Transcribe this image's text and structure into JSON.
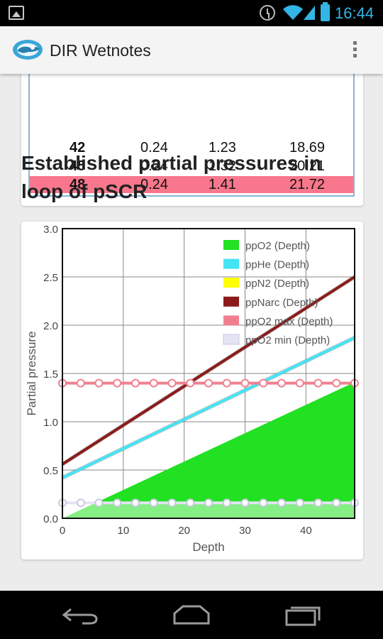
{
  "status_bar": {
    "time": "16:44",
    "icons": [
      "image-notification-icon",
      "alarm-icon",
      "wifi-icon",
      "signal-icon",
      "battery-icon"
    ],
    "accent_color": "#33b5e5"
  },
  "action_bar": {
    "title": "DIR Wetnotes",
    "logo_icon": "diver-logo-icon",
    "menu_icon": "overflow-menu-icon"
  },
  "table": {
    "rows": [
      {
        "depth": "42",
        "v1": "0.24",
        "v2": "1.23",
        "v3": "18.69",
        "highlight": false
      },
      {
        "depth": "45",
        "v1": "0.24",
        "v2": "1.32",
        "v3": "20.21",
        "highlight": false
      },
      {
        "depth": "48",
        "v1": "0.24",
        "v2": "1.41",
        "v3": "21.72",
        "highlight": true
      }
    ],
    "highlight_color": "#f9778c"
  },
  "section": {
    "title": "Established partial pressures in loop of pSCR"
  },
  "chart_data": {
    "type": "line",
    "title": "",
    "xlabel": "Depth",
    "ylabel": "Partial pressure",
    "xlim": [
      0,
      48
    ],
    "ylim": [
      0,
      3.0
    ],
    "x_ticks": [
      0,
      10,
      20,
      30,
      40
    ],
    "y_ticks": [
      0.0,
      0.5,
      1.0,
      1.5,
      2.0,
      2.5,
      3.0
    ],
    "x_tick_labels": [
      "0",
      "10",
      "20",
      "30",
      "40"
    ],
    "y_tick_labels": [
      "0.0",
      "0.5",
      "1.0",
      "1.5",
      "2.0",
      "2.5",
      "3.0"
    ],
    "grid": true,
    "legend_position": "top-right",
    "series": [
      {
        "name": "ppO2 (Depth)",
        "color": "#22e022",
        "style": "area",
        "x": [
          0,
          48
        ],
        "y": [
          0.0,
          1.41
        ]
      },
      {
        "name": "ppHe (Depth)",
        "color": "#44e4f4",
        "style": "line",
        "x": [
          0,
          48
        ],
        "y": [
          0.42,
          1.87
        ]
      },
      {
        "name": "ppN2 (Depth)",
        "color": "#ffff00",
        "style": "line",
        "x": [],
        "y": []
      },
      {
        "name": "ppNarc (Depth)",
        "color": "#8b1a1a",
        "style": "line",
        "x": [
          0,
          48
        ],
        "y": [
          0.56,
          2.5
        ]
      },
      {
        "name": "ppO2 max (Depth)",
        "color": "#f08090",
        "style": "line-markers",
        "x": [
          0,
          3,
          6,
          9,
          12,
          15,
          18,
          21,
          24,
          27,
          30,
          33,
          36,
          39,
          42,
          45,
          48
        ],
        "y": [
          1.4,
          1.4,
          1.4,
          1.4,
          1.4,
          1.4,
          1.4,
          1.4,
          1.4,
          1.4,
          1.4,
          1.4,
          1.4,
          1.4,
          1.4,
          1.4,
          1.4
        ]
      },
      {
        "name": "ppO2 min (Depth)",
        "color": "#e4e4f4",
        "style": "line-markers",
        "x": [
          0,
          3,
          6,
          9,
          12,
          15,
          18,
          21,
          24,
          27,
          30,
          33,
          36,
          39,
          42,
          45,
          48
        ],
        "y": [
          0.16,
          0.16,
          0.16,
          0.16,
          0.16,
          0.16,
          0.16,
          0.16,
          0.16,
          0.16,
          0.16,
          0.16,
          0.16,
          0.16,
          0.16,
          0.16,
          0.16
        ]
      }
    ]
  },
  "nav_bar": {
    "buttons": [
      "back-icon",
      "home-icon",
      "recent-apps-icon"
    ]
  }
}
